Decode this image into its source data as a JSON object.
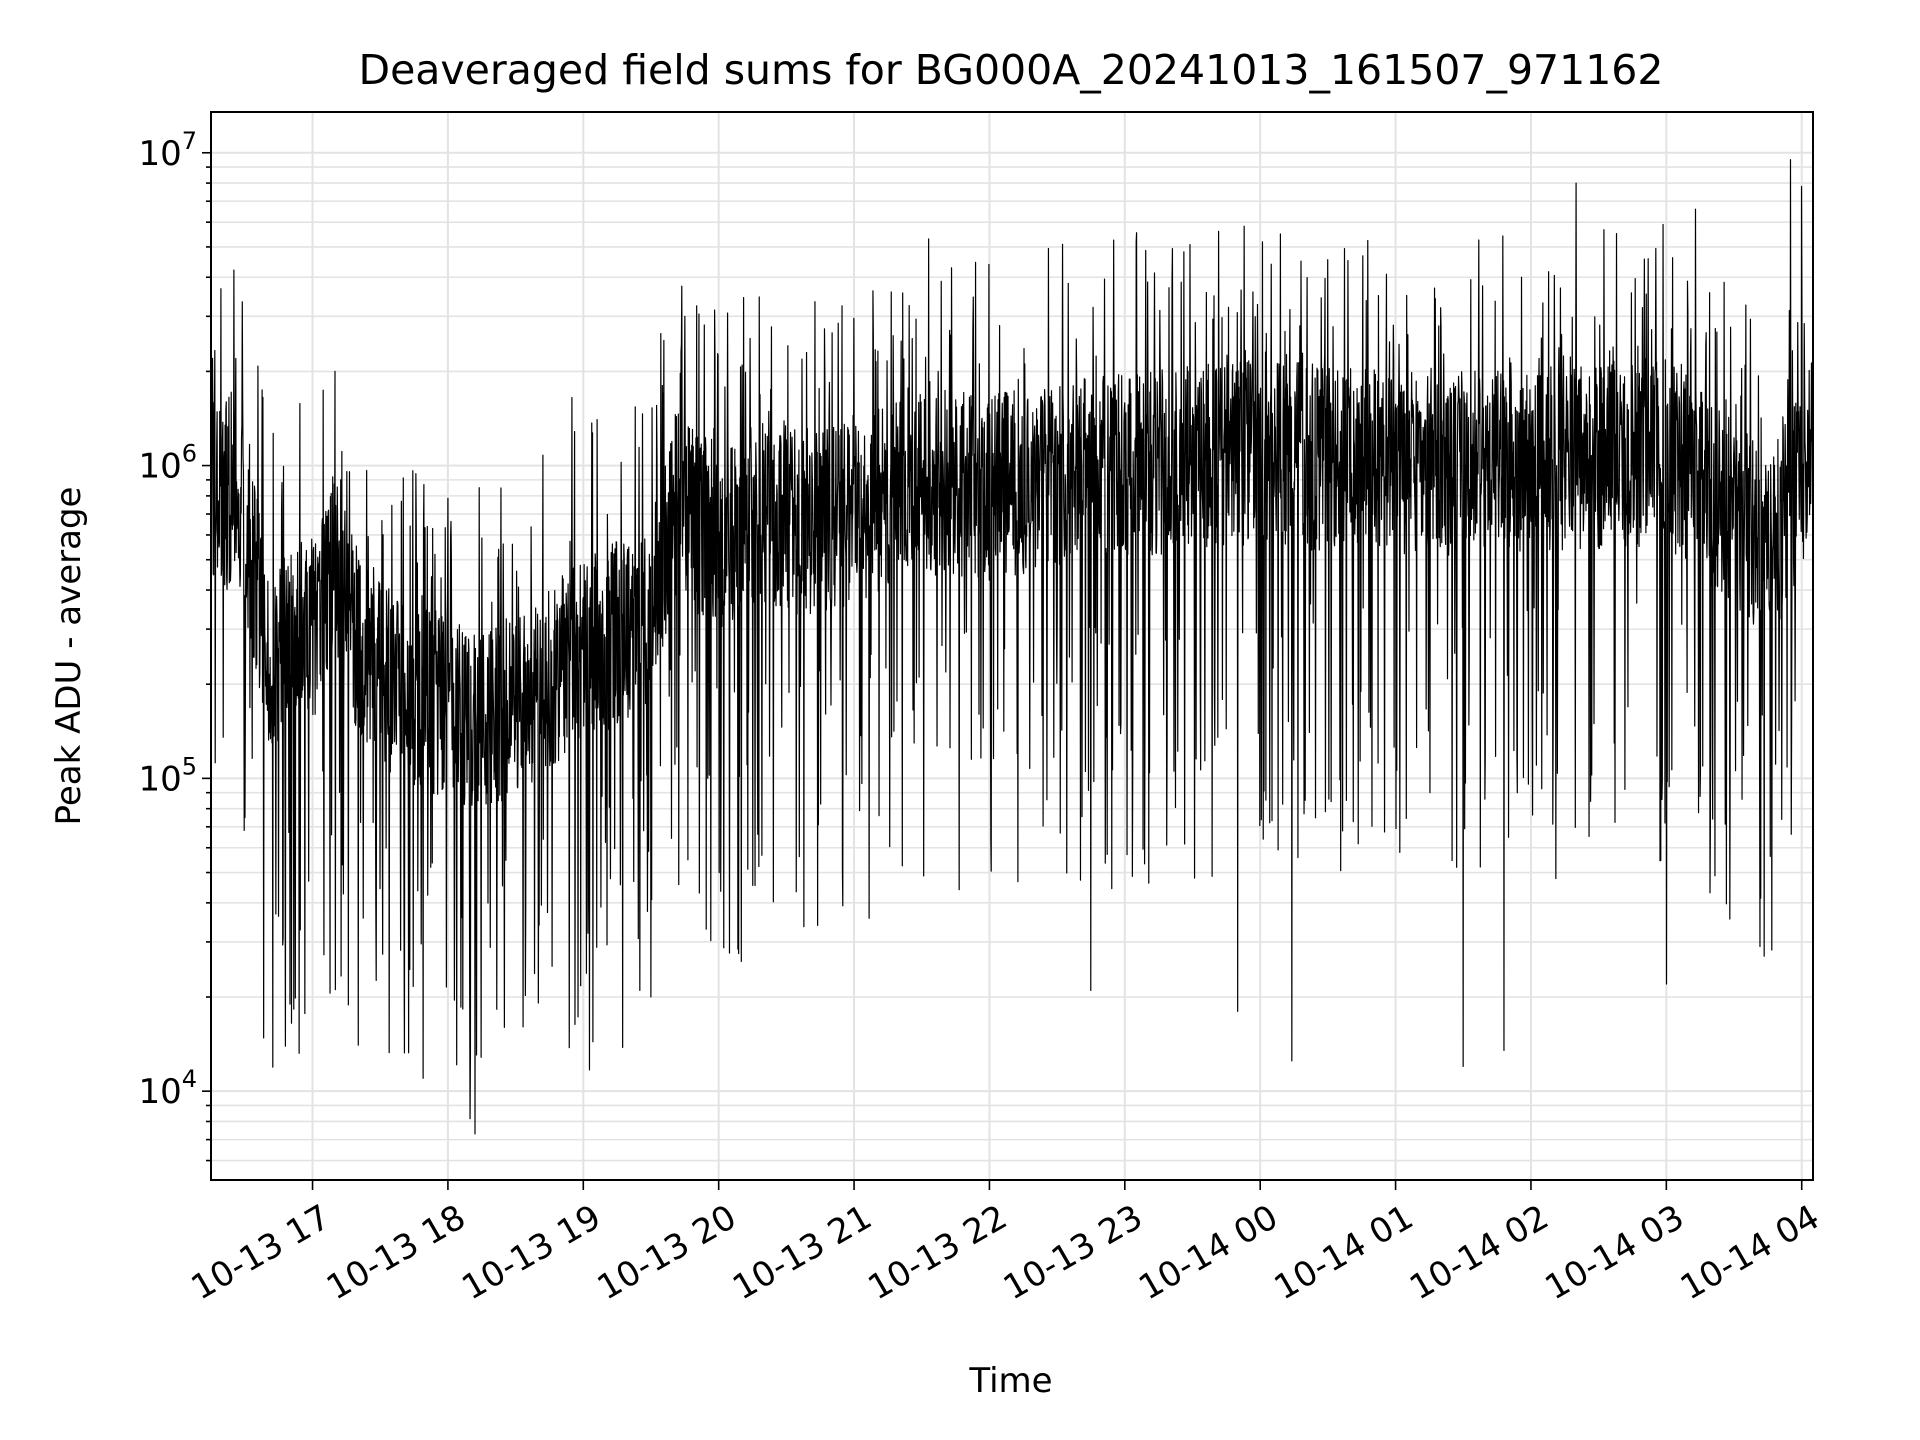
{
  "chart_data": {
    "type": "line",
    "title": "Deaveraged field sums for BG000A_20241013_161507_971162",
    "xlabel": "Time",
    "ylabel": "Peak ADU - average",
    "yscale": "log",
    "ylim": [
      5200,
      13500000
    ],
    "xlim": [
      "2024-10-13 16:15",
      "2024-10-14 04:05"
    ],
    "x_tick_labels": [
      "10-13 17",
      "10-13 18",
      "10-13 19",
      "10-13 20",
      "10-13 21",
      "10-13 22",
      "10-13 23",
      "10-14 00",
      "10-14 01",
      "10-14 02",
      "10-14 03",
      "10-14 04"
    ],
    "x_tick_times": [
      "2024-10-13 17:00",
      "2024-10-13 18:00",
      "2024-10-13 19:00",
      "2024-10-13 20:00",
      "2024-10-13 21:00",
      "2024-10-13 22:00",
      "2024-10-13 23:00",
      "2024-10-14 00:00",
      "2024-10-14 01:00",
      "2024-10-14 02:00",
      "2024-10-14 03:00",
      "2024-10-14 04:00"
    ],
    "y_ticks": [
      {
        "value": 10000,
        "base": "10",
        "exp": "4"
      },
      {
        "value": 100000,
        "base": "10",
        "exp": "5"
      },
      {
        "value": 1000000,
        "base": "10",
        "exp": "6"
      },
      {
        "value": 10000000,
        "base": "10",
        "exp": "7"
      }
    ],
    "grid": true,
    "line_color": "#000000",
    "series": [
      {
        "envelope": [
          {
            "x": "2024-10-13 16:15",
            "y": 900000
          },
          {
            "x": "2024-10-13 16:30",
            "y": 700000
          },
          {
            "x": "2024-10-13 16:40",
            "y": 250000
          },
          {
            "x": "2024-10-13 17:00",
            "y": 300000
          },
          {
            "x": "2024-10-13 17:10",
            "y": 450000
          },
          {
            "x": "2024-10-13 17:20",
            "y": 280000
          },
          {
            "x": "2024-10-13 17:40",
            "y": 180000
          },
          {
            "x": "2024-10-13 18:00",
            "y": 170000
          },
          {
            "x": "2024-10-13 18:20",
            "y": 150000
          },
          {
            "x": "2024-10-13 18:40",
            "y": 200000
          },
          {
            "x": "2024-10-13 19:00",
            "y": 250000
          },
          {
            "x": "2024-10-13 19:30",
            "y": 330000
          },
          {
            "x": "2024-10-13 19:40",
            "y": 750000
          },
          {
            "x": "2024-10-13 20:00",
            "y": 600000
          },
          {
            "x": "2024-10-13 21:00",
            "y": 700000
          },
          {
            "x": "2024-10-13 21:30",
            "y": 900000
          },
          {
            "x": "2024-10-13 22:00",
            "y": 850000
          },
          {
            "x": "2024-10-13 23:00",
            "y": 1000000
          },
          {
            "x": "2024-10-14 00:00",
            "y": 1100000
          },
          {
            "x": "2024-10-14 01:00",
            "y": 1000000
          },
          {
            "x": "2024-10-14 02:00",
            "y": 1050000
          },
          {
            "x": "2024-10-14 03:00",
            "y": 1100000
          },
          {
            "x": "2024-10-14 03:45",
            "y": 550000
          },
          {
            "x": "2024-10-14 04:05",
            "y": 1000000
          }
        ],
        "peaks": [
          {
            "x": "2024-10-13 16:26",
            "y": 2200000
          },
          {
            "x": "2024-10-13 17:10",
            "y": 2000000
          },
          {
            "x": "2024-10-13 18:25",
            "y": 850000
          },
          {
            "x": "2024-10-13 18:55",
            "y": 1650000
          },
          {
            "x": "2024-10-13 19:45",
            "y": 3000000
          },
          {
            "x": "2024-10-13 21:33",
            "y": 5300000
          },
          {
            "x": "2024-10-13 23:05",
            "y": 5200000
          },
          {
            "x": "2024-10-14 00:09",
            "y": 5500000
          },
          {
            "x": "2024-10-14 02:20",
            "y": 8000000
          },
          {
            "x": "2024-10-14 03:13",
            "y": 6600000
          },
          {
            "x": "2024-10-14 03:55",
            "y": 9500000
          },
          {
            "x": "2024-10-14 04:00",
            "y": 7800000
          }
        ],
        "troughs": [
          {
            "x": "2024-10-13 16:50",
            "y": 19000
          },
          {
            "x": "2024-10-13 17:49",
            "y": 11000
          },
          {
            "x": "2024-10-13 18:12",
            "y": 7300
          },
          {
            "x": "2024-10-13 18:25",
            "y": 16000
          },
          {
            "x": "2024-10-13 19:25",
            "y": 21000
          },
          {
            "x": "2024-10-13 20:10",
            "y": 26000
          },
          {
            "x": "2024-10-13 22:45",
            "y": 21000
          },
          {
            "x": "2024-10-13 23:50",
            "y": 18000
          },
          {
            "x": "2024-10-14 00:14",
            "y": 12500
          },
          {
            "x": "2024-10-14 01:30",
            "y": 12000
          },
          {
            "x": "2024-10-14 01:48",
            "y": 13500
          },
          {
            "x": "2024-10-14 03:00",
            "y": 22000
          }
        ]
      }
    ]
  }
}
